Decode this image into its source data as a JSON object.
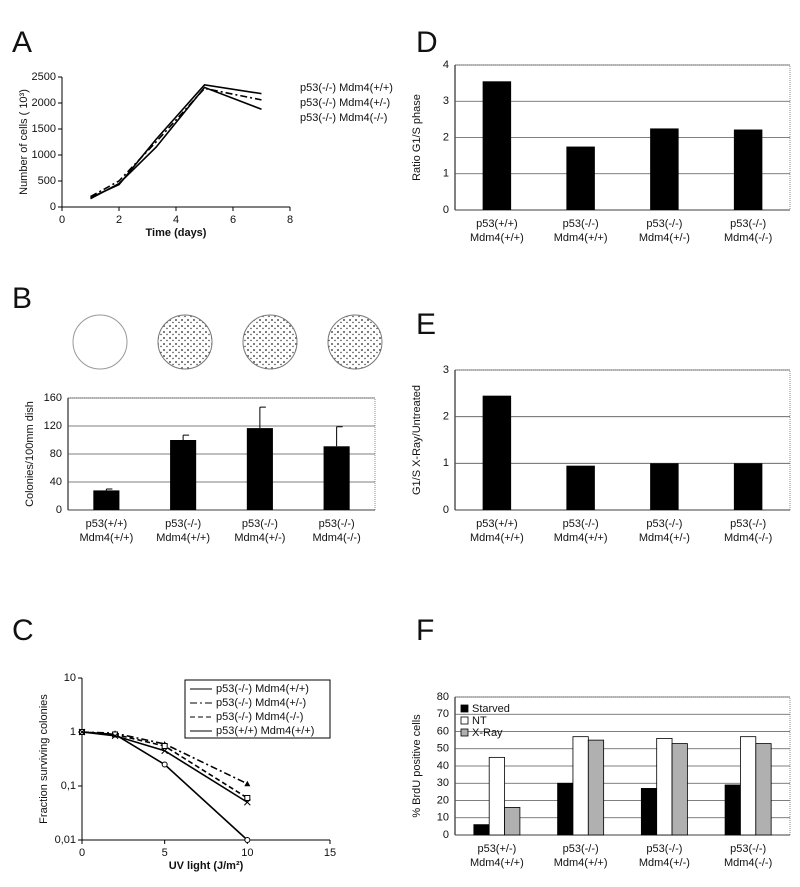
{
  "chart_data": [
    {
      "type": "line",
      "panel": "A",
      "xlabel": "Time (days)",
      "ylabel": "Number of cells ( 10³)",
      "x": [
        1,
        2,
        3.3,
        5,
        7
      ],
      "xlim": [
        0,
        8
      ],
      "xticks": [
        0,
        2,
        4,
        6,
        8
      ],
      "ylim": [
        0,
        2500
      ],
      "yticks": [
        0,
        500,
        1000,
        1500,
        2000,
        2500
      ],
      "grid": false,
      "log_y": false,
      "series": [
        {
          "name": "p53(-/-)   Mdm4(+/+)",
          "color": "#000000",
          "dash": "solid",
          "values": [
            180,
            430,
            1300,
            2350,
            2180
          ]
        },
        {
          "name": "p53(-/-)   Mdm4(+/-)",
          "color": "#000000",
          "dash": "dashdot",
          "values": [
            200,
            500,
            1250,
            2280,
            2060
          ]
        },
        {
          "name": "p53(-/-)   Mdm4(-/-)",
          "color": "#000000",
          "dash": "solid",
          "values": [
            160,
            450,
            1150,
            2300,
            1880
          ]
        }
      ]
    },
    {
      "type": "bar",
      "panel": "B",
      "ylabel": "Colonies/100mm dish",
      "categories": [
        [
          "p53(+/+)",
          "Mdm4(+/+)"
        ],
        [
          "p53(-/-)",
          "Mdm4(+/+)"
        ],
        [
          "p53(-/-)",
          "Mdm4(+/-)"
        ],
        [
          "p53(-/-)",
          "Mdm4(-/-)"
        ]
      ],
      "values": [
        28,
        100,
        117,
        91
      ],
      "errors": [
        2,
        7,
        30,
        28
      ],
      "color": "#000000",
      "ylim": [
        0,
        160
      ],
      "yticks": [
        0,
        40,
        80,
        120,
        160
      ],
      "grid": true
    },
    {
      "type": "line",
      "panel": "C",
      "xlabel": "UV light (J/m²)",
      "ylabel": "Fraction surviving colonies",
      "x": [
        0,
        2,
        5,
        10
      ],
      "xlim": [
        0,
        15
      ],
      "xticks": [
        0,
        5,
        10,
        15
      ],
      "ylim": [
        0.01,
        10
      ],
      "yticks": [
        {
          "value": 0.01,
          "label": "0,01"
        },
        {
          "value": 0.1,
          "label": "0,1"
        },
        1,
        10
      ],
      "grid": false,
      "log_y": true,
      "series": [
        {
          "name": "p53(-/-)    Mdm4(+/+)",
          "color": "#000000",
          "dash": "solid",
          "marker": "circle",
          "values": [
            1,
            0.9,
            0.25,
            0.01
          ]
        },
        {
          "name": "p53(-/-)    Mdm4(+/-)",
          "color": "#000000",
          "dash": "dashdot",
          "marker": "triangle",
          "values": [
            1,
            0.95,
            0.6,
            0.11
          ]
        },
        {
          "name": "p53(-/-)    Mdm4(-/-)",
          "color": "#000000",
          "dash": "dashed",
          "marker": "square",
          "values": [
            1,
            0.9,
            0.55,
            0.06
          ]
        },
        {
          "name": "p53(+/+)    Mdm4(+/+)",
          "color": "#000000",
          "dash": "solid",
          "marker": "cross",
          "values": [
            1,
            0.85,
            0.45,
            0.05
          ]
        }
      ]
    },
    {
      "type": "bar",
      "panel": "D",
      "ylabel": "Ratio G1/S phase",
      "categories": [
        [
          "p53(+/+)",
          "Mdm4(+/+)"
        ],
        [
          "p53(-/-)",
          "Mdm4(+/+)"
        ],
        [
          "p53(-/-)",
          "Mdm4(+/-)"
        ],
        [
          "p53(-/-)",
          "Mdm4(-/-)"
        ]
      ],
      "values": [
        3.55,
        1.75,
        2.25,
        2.22
      ],
      "color": "#000000",
      "ylim": [
        0,
        4
      ],
      "yticks": [
        0,
        1,
        2,
        3,
        4
      ],
      "grid": true
    },
    {
      "type": "bar",
      "panel": "E",
      "ylabel": "G1/S  X-Ray/Untreated",
      "categories": [
        [
          "p53(+/+)",
          "Mdm4(+/+)"
        ],
        [
          "p53(-/-)",
          "Mdm4(+/+)"
        ],
        [
          "p53(-/-)",
          "Mdm4(+/-)"
        ],
        [
          "p53(-/-)",
          "Mdm4(-/-)"
        ]
      ],
      "values": [
        2.45,
        0.95,
        1.0,
        1.0
      ],
      "color": "#000000",
      "ylim": [
        0,
        3
      ],
      "yticks": [
        0,
        1,
        2,
        3
      ],
      "grid": true
    },
    {
      "type": "grouped_bar",
      "panel": "F",
      "ylabel": "% BrdU positive cells",
      "categories": [
        [
          "p53(+/-)",
          "Mdm4(+/+)"
        ],
        [
          "p53(-/-)",
          "Mdm4(+/+)"
        ],
        [
          "p53(-/-)",
          "Mdm4(+/-)"
        ],
        [
          "p53(-/-)",
          "Mdm4(-/-)"
        ]
      ],
      "series": [
        {
          "name": "Starved",
          "color": "#000000",
          "values": [
            6,
            30,
            27,
            29
          ]
        },
        {
          "name": "NT",
          "color": "#ffffff",
          "values": [
            45,
            57,
            56,
            57
          ]
        },
        {
          "name": "X-Ray",
          "color": "#b0b0b0",
          "values": [
            16,
            55,
            53,
            53
          ]
        }
      ],
      "ylim": [
        0,
        80
      ],
      "yticks": [
        0,
        10,
        20,
        30,
        40,
        50,
        60,
        70,
        80
      ],
      "grid": true
    }
  ]
}
